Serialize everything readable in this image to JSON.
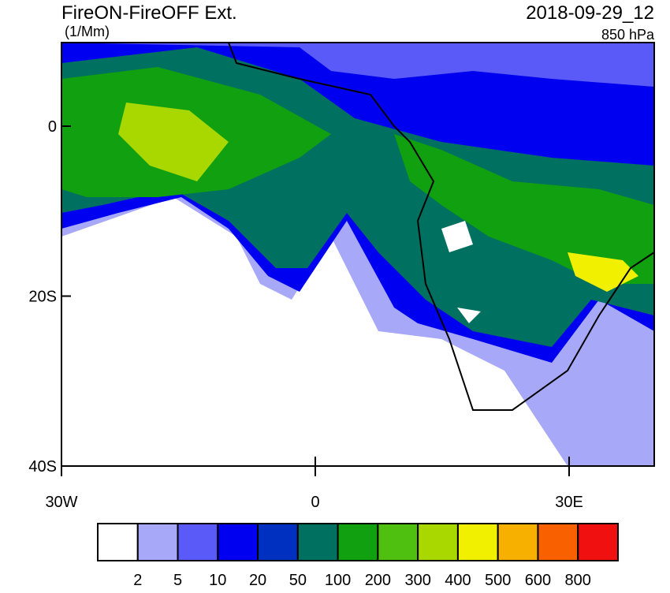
{
  "header": {
    "title": "FireON-FireOFF Ext.",
    "units": "(1/Mm)",
    "time": "2018-09-29_12",
    "level": "850 hPa"
  },
  "axes": {
    "y_labels": [
      "0",
      "20S",
      "40S"
    ],
    "x_labels": [
      "30W",
      "0",
      "30E"
    ]
  },
  "colorbar": {
    "colors": [
      "#ffffff",
      "#a8a8f8",
      "#5a5af8",
      "#0000f0",
      "#0030c0",
      "#007060",
      "#10a010",
      "#50c010",
      "#a8d800",
      "#f0f000",
      "#f8b000",
      "#f86000",
      "#f01010"
    ],
    "labels": [
      "2",
      "5",
      "10",
      "20",
      "50",
      "100",
      "200",
      "300",
      "400",
      "500",
      "600",
      "800"
    ]
  }
}
